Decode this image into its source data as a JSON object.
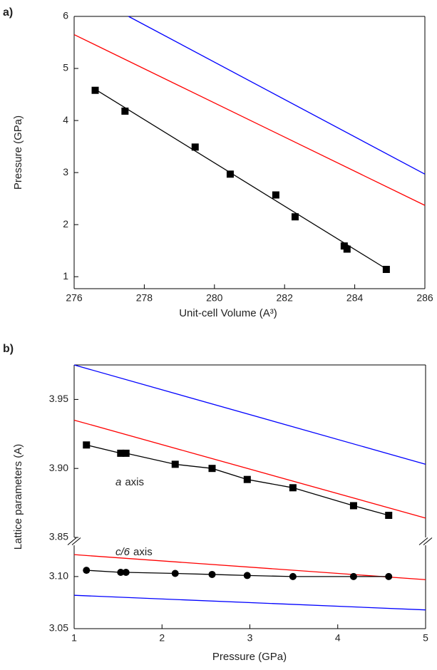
{
  "chart_data": [
    {
      "type": "scatter",
      "panel_label": "a)",
      "x_label": "Unit-cell Volume (A³)",
      "y_label": "Pressure (GPa)",
      "xlim": [
        276,
        286
      ],
      "xticks": [
        276,
        278,
        280,
        282,
        284,
        286
      ],
      "ylim": [
        0.77,
        6
      ],
      "yticks": [
        1,
        2,
        3,
        4,
        5,
        6
      ],
      "series": [
        {
          "x": [
            276.6,
            277.45,
            279.45,
            280.45,
            281.75,
            282.3,
            283.7,
            283.78,
            284.9
          ],
          "values": [
            4.58,
            4.18,
            3.49,
            2.97,
            2.57,
            2.15,
            1.59,
            1.53,
            1.14
          ],
          "color": "#000000",
          "marker": "square",
          "line": false
        },
        {
          "x": [
            276.6,
            284.9
          ],
          "values": [
            4.6,
            1.15
          ],
          "color": "#000000",
          "line": true
        },
        {
          "x": [
            276,
            286
          ],
          "values": [
            5.65,
            2.37
          ],
          "color": "#ff0000",
          "line": true
        },
        {
          "x": [
            277.55,
            286
          ],
          "values": [
            6,
            2.97
          ],
          "color": "#0000ff",
          "line": true
        }
      ]
    },
    {
      "type": "scatter",
      "panel_label": "b)",
      "x_label": "Pressure (GPa)",
      "y_label": "Lattice parameters (A)",
      "xlim": [
        1,
        5
      ],
      "xticks": [
        1,
        2,
        3,
        4,
        5
      ],
      "y_segments": [
        {
          "ylim": [
            3.05,
            3.13
          ],
          "yticks": [
            3.05,
            {
              "value": 3.1,
              "label": "3.10"
            }
          ]
        },
        {
          "ylim": [
            3.85,
            3.975
          ],
          "yticks": [
            3.85,
            {
              "value": 3.9,
              "label": "3.90"
            },
            3.95
          ]
        }
      ],
      "annotations": [
        {
          "italic": "a",
          "text": "axis"
        },
        {
          "italic": "c/6",
          "text": "axis"
        }
      ],
      "series": [
        {
          "x": [
            1.14,
            1.53,
            1.59,
            2.15,
            2.57,
            2.97,
            3.49,
            4.18,
            4.58
          ],
          "values": [
            3.917,
            3.911,
            3.911,
            3.903,
            3.9,
            3.892,
            3.886,
            3.873,
            3.866
          ],
          "color": "#000000",
          "marker": "square",
          "line": true,
          "segment": 1
        },
        {
          "x": [
            1,
            5
          ],
          "values": [
            3.935,
            3.864
          ],
          "color": "#ff0000",
          "line": true,
          "segment": 1
        },
        {
          "x": [
            1,
            5
          ],
          "values": [
            3.975,
            3.903
          ],
          "color": "#0000ff",
          "line": true,
          "segment": 1
        },
        {
          "x": [
            1,
            5
          ],
          "values": [
            3.121,
            3.097
          ],
          "color": "#ff0000",
          "line": true,
          "segment": 0
        },
        {
          "x": [
            1,
            5
          ],
          "values": [
            3.082,
            3.068
          ],
          "color": "#0000ff",
          "line": true,
          "segment": 0
        },
        {
          "x": [
            1.14,
            1.53,
            1.59,
            2.15,
            2.57,
            2.97,
            3.49,
            4.18,
            4.58
          ],
          "values": [
            3.106,
            3.104,
            3.104,
            3.103,
            3.102,
            3.101,
            3.1,
            3.1,
            3.1
          ],
          "color": "#000000",
          "marker": "circle",
          "line": true,
          "segment": 0
        }
      ]
    }
  ]
}
